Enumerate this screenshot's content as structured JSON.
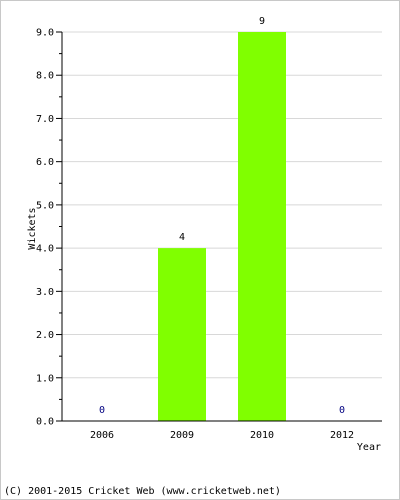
{
  "chart_data": {
    "type": "bar",
    "categories": [
      "2006",
      "2009",
      "2010",
      "2012"
    ],
    "values": [
      0,
      4,
      9,
      0
    ],
    "data_labels": [
      "0",
      "4",
      "9",
      "0"
    ],
    "xlabel": "Year",
    "ylabel": "Wickets",
    "ylim": [
      0,
      9
    ],
    "yticks": [
      "0.0",
      "1.0",
      "2.0",
      "3.0",
      "4.0",
      "5.0",
      "6.0",
      "7.0",
      "8.0",
      "9.0"
    ],
    "grid": true,
    "bar_color": "#80ff00",
    "zero_label_color": "#000080",
    "grid_color": "#d8d8d8"
  },
  "footer": {
    "copyright": "(C) 2001-2015 Cricket Web (www.cricketweb.net)"
  }
}
